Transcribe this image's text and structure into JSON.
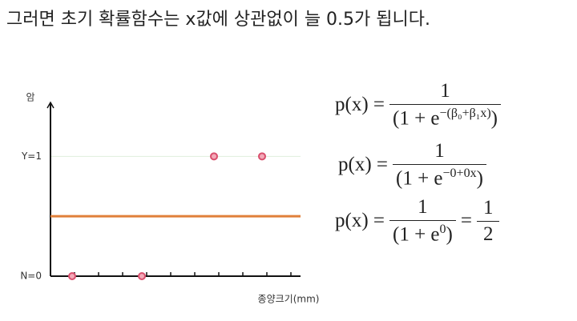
{
  "title": "그러면 초기 확률함수는 x값에 상관없이 늘 0.5가 됩니다.",
  "chart_data": {
    "type": "scatter",
    "y_label": "암",
    "x_label": "종양크기(mm)",
    "x": [
      0.9,
      3.8,
      6.8,
      8.8
    ],
    "values": [
      0,
      0,
      1,
      1
    ],
    "color": "#d9506e",
    "xlim": [
      0,
      10.4
    ],
    "xticks": [
      1,
      2,
      3,
      4,
      5,
      6,
      7,
      8,
      9,
      10
    ],
    "ylim": [
      0,
      1.45
    ],
    "yticks": [
      {
        "value": 0,
        "label": "N=0"
      },
      {
        "value": 1,
        "label": "Y=1"
      }
    ],
    "grid": true,
    "reference_line": {
      "value": 0.5,
      "color": "#e0803a"
    }
  },
  "formulas": [
    {
      "lhs": "p(x) =",
      "num": "1",
      "den_base": "(1 + e",
      "den_exp": "−(β₀+β₁x)",
      "den_close": ")"
    },
    {
      "lhs": "p(x) =",
      "num": "1",
      "den_base": "(1 + e",
      "den_exp": "−0+0x",
      "den_close": ")"
    },
    {
      "lhs": "p(x) =",
      "num": "1",
      "den_base": "(1 + e",
      "den_exp": "0",
      "den_close": ")",
      "eq": "=",
      "num2": "1",
      "den2": "2"
    }
  ]
}
